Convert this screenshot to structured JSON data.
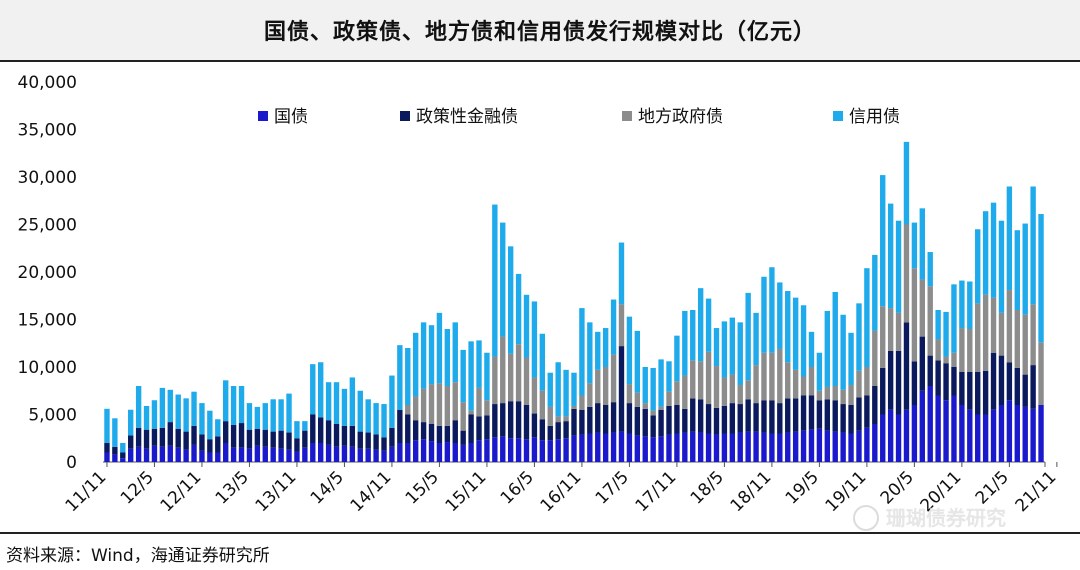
{
  "chart_data": {
    "type": "bar",
    "stacked": true,
    "title": "国债、政策债、地方债和信用债发行规模对比（亿元）",
    "xlabel": "",
    "ylabel": "",
    "ylim": [
      0,
      40000
    ],
    "yticks": [
      "0",
      "5,000",
      "10,000",
      "15,000",
      "20,000",
      "25,000",
      "30,000",
      "35,000",
      "40,000"
    ],
    "ytick_values": [
      0,
      5000,
      10000,
      15000,
      20000,
      25000,
      30000,
      35000,
      40000
    ],
    "xtick_labels": [
      "11/11",
      "12/5",
      "12/11",
      "13/5",
      "13/11",
      "14/5",
      "14/11",
      "15/5",
      "15/11",
      "16/5",
      "16/11",
      "17/5",
      "17/11",
      "18/5",
      "18/11",
      "19/5",
      "19/11",
      "20/5",
      "20/11",
      "21/5",
      "21/11"
    ],
    "legend_position": "top",
    "series": [
      {
        "name": "国债",
        "color": "#1a1acc",
        "values": [
          1000,
          800,
          400,
          1400,
          1600,
          1400,
          1700,
          1600,
          1700,
          1500,
          1300,
          1800,
          1200,
          1000,
          1000,
          2000,
          1500,
          1500,
          1400,
          1700,
          1600,
          1500,
          1400,
          1300,
          1100,
          1500,
          2000,
          2000,
          1800,
          1600,
          1700,
          1600,
          1400,
          1400,
          1300,
          1200,
          1600,
          2000,
          2000,
          2300,
          2400,
          2200,
          2000,
          2100,
          2000,
          1800,
          2000,
          2300,
          2400,
          2600,
          2700,
          2500,
          2500,
          2400,
          2600,
          2300,
          2300,
          2400,
          2500,
          2800,
          2900,
          3000,
          3100,
          3000,
          3100,
          3200,
          3000,
          2800,
          2700,
          2600,
          2700,
          2900,
          3000,
          3100,
          3200,
          3100,
          3000,
          2900,
          3000,
          3000,
          3100,
          3200,
          3200,
          3100,
          3000,
          3000,
          3100,
          3200,
          3300,
          3400,
          3500,
          3300,
          3200,
          3100,
          3000,
          3300,
          3600,
          4000,
          5000,
          5500,
          5000,
          5500,
          6000,
          7500,
          8000,
          7000,
          6500,
          7000,
          6000,
          5500,
          5000,
          5000,
          5500,
          6000,
          6500,
          6000,
          5800,
          5600,
          6000
        ]
      },
      {
        "name": "政策性金融债",
        "color": "#0b1a5c",
        "values": [
          1000,
          800,
          600,
          1400,
          2000,
          2000,
          1800,
          2000,
          2500,
          2000,
          1900,
          2000,
          1700,
          1400,
          1700,
          2300,
          2400,
          2600,
          2000,
          1800,
          1800,
          1700,
          1900,
          1800,
          1400,
          1800,
          3000,
          2700,
          2600,
          2400,
          2100,
          2200,
          1800,
          1700,
          1600,
          1400,
          2000,
          3500,
          3000,
          2100,
          1800,
          1800,
          1800,
          1700,
          2400,
          1500,
          3000,
          2500,
          2500,
          3500,
          3500,
          3900,
          3900,
          3600,
          2500,
          2200,
          1500,
          1800,
          1800,
          2800,
          2600,
          2800,
          3100,
          3000,
          3200,
          9000,
          3200,
          3000,
          2900,
          2300,
          2800,
          3000,
          3000,
          2500,
          3500,
          3500,
          3100,
          2800,
          2900,
          3200,
          3000,
          3400,
          3000,
          3400,
          3500,
          3200,
          3600,
          3500,
          3700,
          3600,
          3000,
          3300,
          3300,
          3000,
          3000,
          3500,
          3400,
          4000,
          4900,
          6200,
          6700,
          9200,
          4600,
          5700,
          3200,
          3700,
          3900,
          3000,
          3500,
          4000,
          4500,
          4600,
          6000,
          5200,
          4000,
          3900,
          3400,
          4600
        ]
      },
      {
        "name": "地方政府债",
        "color": "#8c8c8c",
        "values": [
          0,
          0,
          0,
          0,
          0,
          0,
          0,
          0,
          0,
          0,
          0,
          0,
          0,
          0,
          0,
          0,
          0,
          0,
          0,
          0,
          0,
          0,
          0,
          0,
          0,
          0,
          0,
          0,
          0,
          0,
          0,
          0,
          0,
          0,
          0,
          0,
          0,
          0,
          1000,
          2500,
          3500,
          4200,
          4500,
          4200,
          4000,
          3000,
          400,
          3000,
          1600,
          5000,
          7000,
          5000,
          6000,
          5000,
          3800,
          3000,
          2000,
          600,
          500,
          300,
          1500,
          2500,
          3500,
          4000,
          5000,
          4400,
          2000,
          1500,
          600,
          500,
          300,
          1500,
          2500,
          3500,
          4000,
          4000,
          5500,
          4400,
          3000,
          3000,
          2000,
          2000,
          4000,
          5000,
          5000,
          5700,
          3800,
          3000,
          2000,
          3000,
          1000,
          1300,
          1500,
          1500,
          2100,
          2800,
          3000,
          5800,
          6500,
          4500,
          4000,
          10300,
          9800,
          6000,
          7300,
          2200,
          700,
          1500,
          4600,
          4500,
          7200,
          8000,
          5800,
          4500,
          7600,
          6100,
          6300,
          6400,
          6600
        ]
      },
      {
        "name": "信用债",
        "color": "#1eaaeb",
        "values": [
          3600,
          3000,
          1000,
          2700,
          4400,
          2500,
          3000,
          4200,
          3400,
          3600,
          3500,
          3600,
          3300,
          3000,
          1800,
          4300,
          4100,
          3900,
          2800,
          2300,
          2800,
          3400,
          3300,
          4100,
          1800,
          1000,
          5300,
          5800,
          4000,
          4400,
          3900,
          5100,
          4300,
          3500,
          3300,
          3500,
          5500,
          6800,
          6000,
          6700,
          7000,
          6200,
          7400,
          6000,
          6300,
          5500,
          7300,
          5000,
          5000,
          16000,
          12000,
          11300,
          7400,
          6600,
          8000,
          6000,
          3600,
          5700,
          4900,
          3500,
          9200,
          6400,
          4000,
          4100,
          5800,
          6500,
          7100,
          6500,
          3800,
          4500,
          5000,
          3200,
          4800,
          6800,
          5300,
          7700,
          5600,
          4000,
          5900,
          6000,
          6600,
          9200,
          5500,
          8000,
          9000,
          7000,
          7500,
          7600,
          7500,
          3700,
          4000,
          8000,
          9900,
          7900,
          5500,
          7100,
          10400,
          8000,
          13800,
          11000,
          9700,
          8700,
          4800,
          7500,
          3600,
          3100,
          4700,
          7200,
          5000,
          5000,
          7800,
          8800,
          10000,
          9700,
          10900,
          8400,
          9600,
          12400,
          13500
        ]
      }
    ]
  },
  "legend": [
    {
      "label": "国债",
      "color": "#1a1acc"
    },
    {
      "label": "政策性金融债",
      "color": "#0b1a5c"
    },
    {
      "label": "地方政府债",
      "color": "#8c8c8c"
    },
    {
      "label": "信用债",
      "color": "#1eaaeb"
    }
  ],
  "source_note": "资料来源：Wind，海通证券研究所",
  "watermark": "珊瑚债券研究"
}
